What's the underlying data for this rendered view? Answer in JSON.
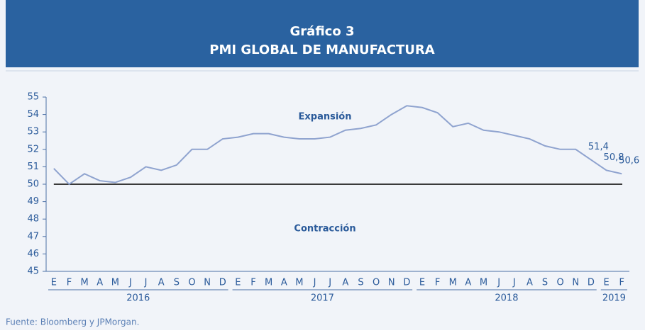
{
  "chart_data": {
    "type": "line",
    "title": "Gráfico 3",
    "subtitle": "PMI GLOBAL DE MANUFACTURA",
    "source": "Fuente: Bloomberg y JPMorgan.",
    "annotations": [
      "Expansión",
      "Contracción"
    ],
    "categories": [
      "E",
      "F",
      "M",
      "A",
      "M",
      "J",
      "J",
      "A",
      "S",
      "O",
      "N",
      "D",
      "E",
      "F",
      "M",
      "A",
      "M",
      "J",
      "J",
      "A",
      "S",
      "O",
      "N",
      "D",
      "E",
      "F",
      "M",
      "A",
      "M",
      "J",
      "J",
      "A",
      "S",
      "O",
      "N",
      "D",
      "E",
      "F"
    ],
    "year_groups": [
      {
        "label": "2016",
        "count": 12
      },
      {
        "label": "2017",
        "count": 12
      },
      {
        "label": "2018",
        "count": 12
      },
      {
        "label": "2019",
        "count": 2
      }
    ],
    "series": [
      {
        "color": "#8fa3cf",
        "values": [
          50.9,
          50.0,
          50.6,
          50.2,
          50.1,
          50.4,
          51.0,
          50.8,
          51.1,
          52.0,
          52.0,
          52.6,
          52.7,
          52.9,
          52.9,
          52.7,
          52.6,
          52.6,
          52.7,
          53.1,
          53.2,
          53.4,
          54.0,
          54.5,
          54.4,
          54.1,
          53.3,
          53.5,
          53.1,
          53.0,
          52.8,
          52.6,
          52.2,
          52.0,
          52.0,
          51.4,
          50.8,
          50.6
        ],
        "value_labels": [
          null,
          null,
          null,
          null,
          null,
          null,
          null,
          null,
          null,
          null,
          null,
          null,
          null,
          null,
          null,
          null,
          null,
          null,
          null,
          null,
          null,
          null,
          null,
          null,
          null,
          null,
          null,
          null,
          null,
          null,
          null,
          null,
          null,
          null,
          null,
          "51,4",
          "50,8",
          "50,6"
        ]
      }
    ],
    "reference_line": 50,
    "ylim": [
      45,
      55
    ],
    "yticks": [
      45,
      46,
      47,
      48,
      49,
      50,
      51,
      52,
      53,
      54,
      55
    ]
  }
}
